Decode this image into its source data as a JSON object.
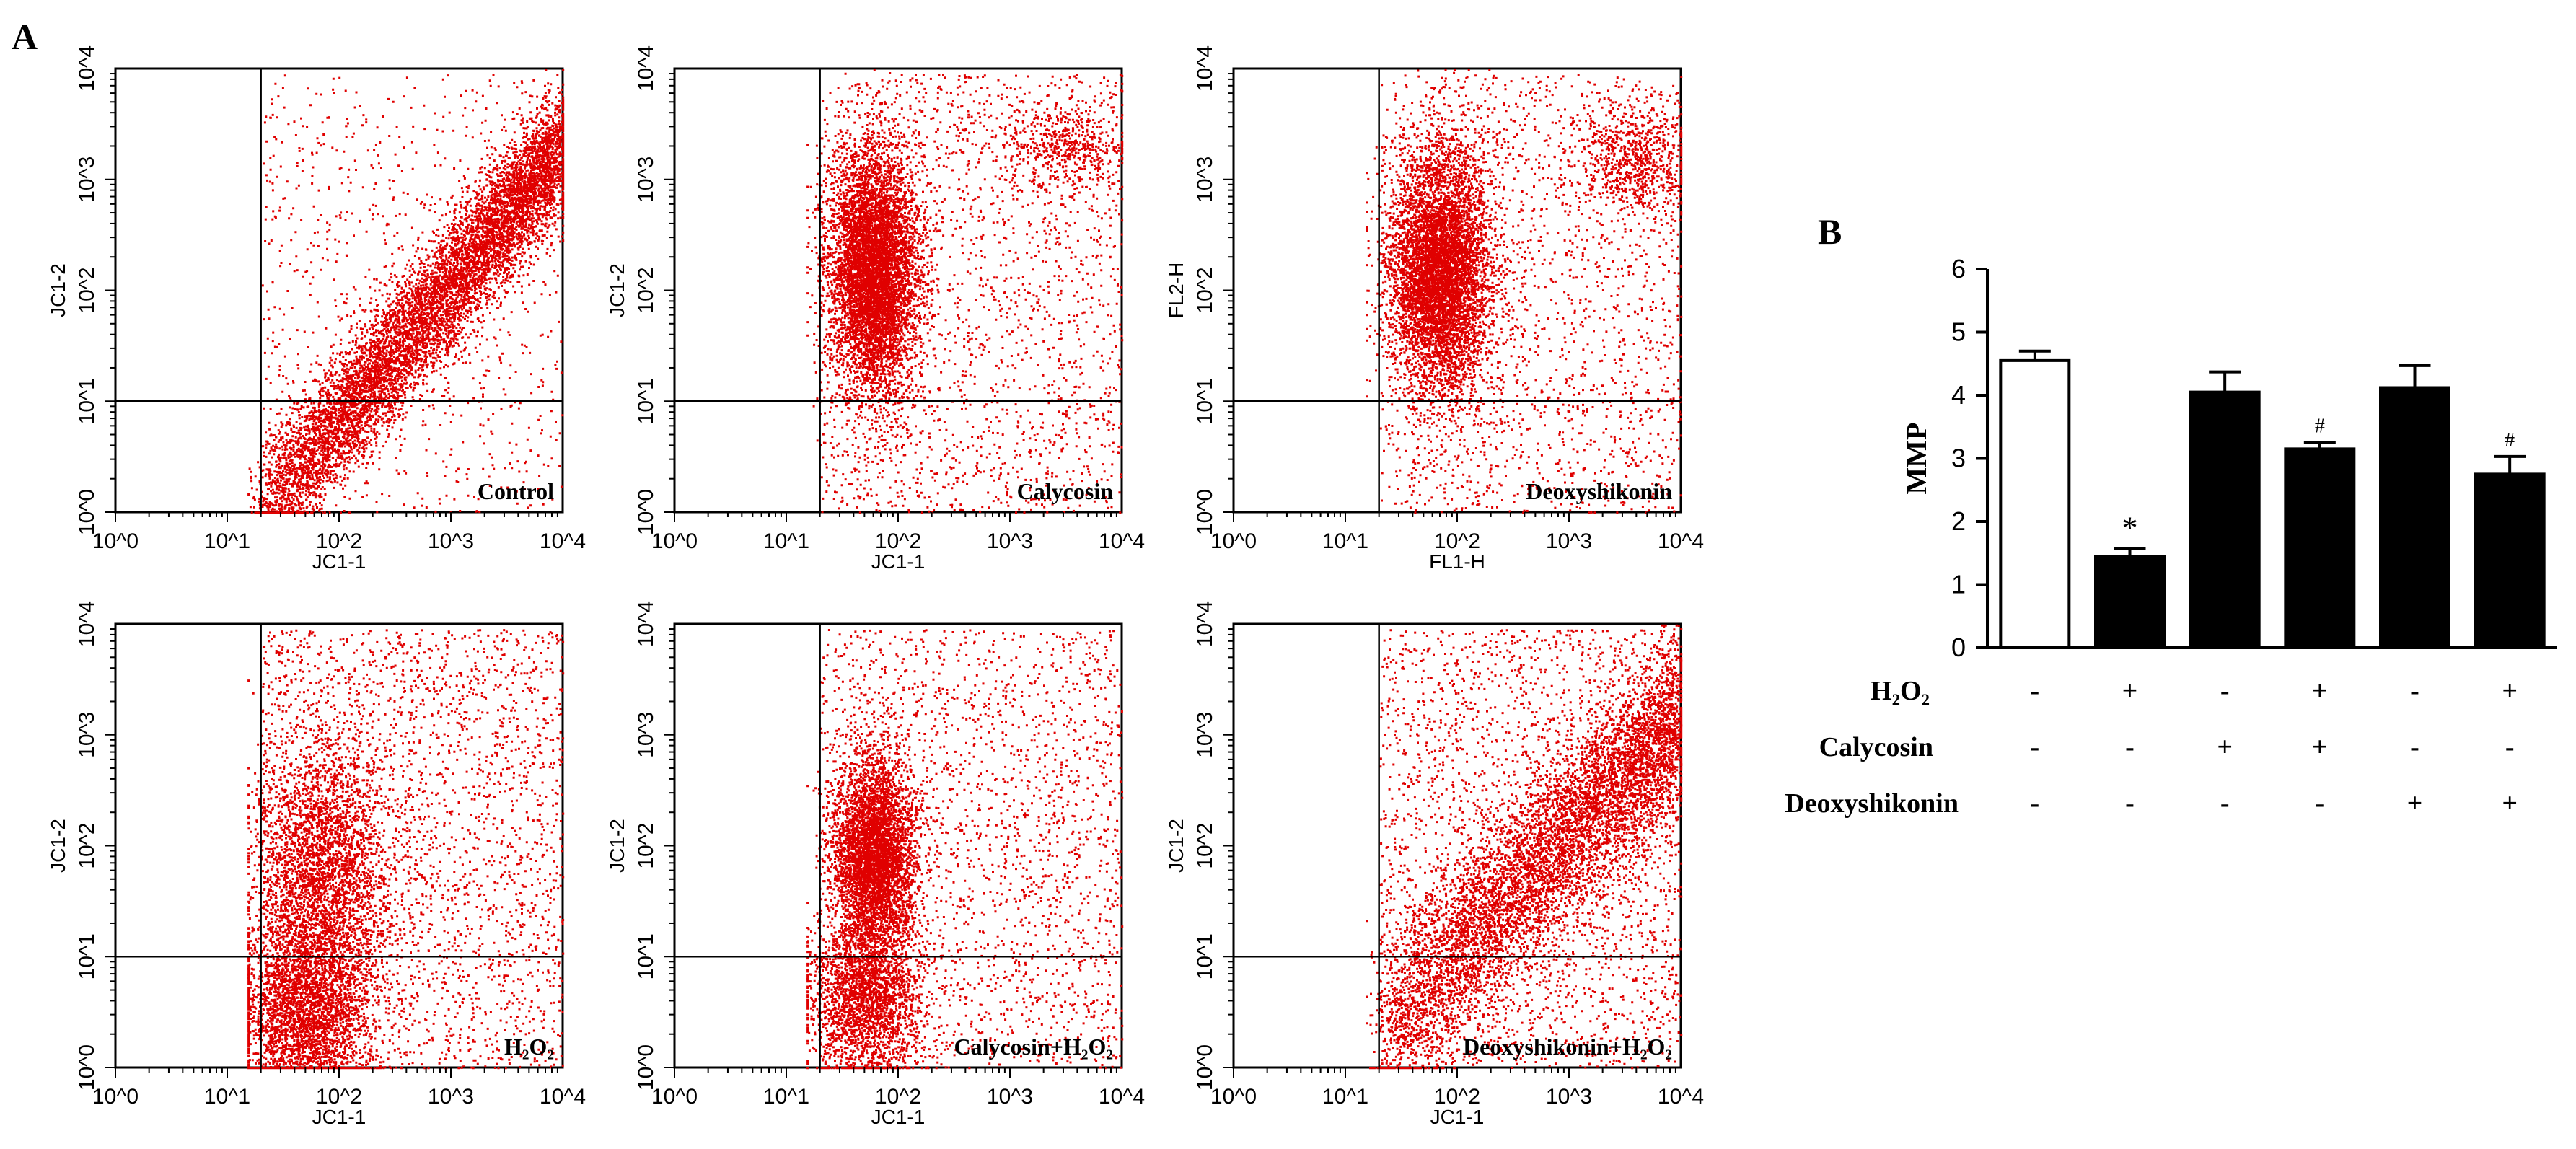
{
  "panel_labels": {
    "a": "A",
    "b": "B"
  },
  "chart_data": [
    {
      "type": "scatter",
      "panel": "A",
      "sample": "Control",
      "title": "Control",
      "xlabel": "JC1-1",
      "ylabel": "JC1-2",
      "xscale": "log",
      "yscale": "log",
      "xlim": [
        1,
        10000
      ],
      "ylim": [
        1,
        10000
      ],
      "x_ticks": [
        "10^0",
        "10^1",
        "10^2",
        "10^3",
        "10^4"
      ],
      "y_ticks": [
        "10^0",
        "10^1",
        "10^2",
        "10^3",
        "10^4"
      ],
      "quadrant_gate": {
        "x": 20,
        "y": 10
      },
      "color": "#e00000",
      "n_events": 9000,
      "populations": [
        {
          "kind": "diagonal",
          "x_from": 20,
          "x_to": 10000,
          "y_from": 1,
          "y_to": 2000,
          "width_decades": 0.28,
          "weight": 0.9
        },
        {
          "kind": "uniform",
          "x_range": [
            20,
            10000
          ],
          "y_range": [
            1,
            9000
          ],
          "weight": 0.1
        }
      ]
    },
    {
      "type": "scatter",
      "panel": "A",
      "sample": "Calycosin",
      "title": "Calycosin",
      "xlabel": "JC1-1",
      "ylabel": "JC1-2",
      "xscale": "log",
      "yscale": "log",
      "xlim": [
        1,
        10000
      ],
      "ylim": [
        1,
        10000
      ],
      "x_ticks": [
        "10^0",
        "10^1",
        "10^2",
        "10^3",
        "10^4"
      ],
      "y_ticks": [
        "10^0",
        "10^1",
        "10^2",
        "10^3",
        "10^4"
      ],
      "quadrant_gate": {
        "x": 20,
        "y": 10
      },
      "color": "#e00000",
      "n_events": 9000,
      "populations": [
        {
          "kind": "cluster",
          "x_center": 60,
          "y_center": 150,
          "x_sd_decades": 0.2,
          "y_sd_decades": 0.55,
          "weight": 0.72
        },
        {
          "kind": "cluster",
          "x_center": 3000,
          "y_center": 2000,
          "x_sd_decades": 0.3,
          "y_sd_decades": 0.2,
          "weight": 0.06
        },
        {
          "kind": "uniform",
          "x_range": [
            20,
            10000
          ],
          "y_range": [
            1,
            9000
          ],
          "weight": 0.22
        }
      ]
    },
    {
      "type": "scatter",
      "panel": "A",
      "sample": "Deoxyshikonin",
      "title": "Deoxyshikonin",
      "xlabel": "FL1-H",
      "ylabel": "FL2-H",
      "xscale": "log",
      "yscale": "log",
      "xlim": [
        1,
        10000
      ],
      "ylim": [
        1,
        10000
      ],
      "x_ticks": [
        "10^0",
        "10^1",
        "10^2",
        "10^3",
        "10^4"
      ],
      "y_ticks": [
        "10^0",
        "10^1",
        "10^2",
        "10^3",
        "10^4"
      ],
      "quadrant_gate": {
        "x": 20,
        "y": 10
      },
      "color": "#e00000",
      "n_events": 9000,
      "populations": [
        {
          "kind": "cluster",
          "x_center": 70,
          "y_center": 150,
          "x_sd_decades": 0.22,
          "y_sd_decades": 0.55,
          "weight": 0.7
        },
        {
          "kind": "cluster",
          "x_center": 4000,
          "y_center": 1500,
          "x_sd_decades": 0.25,
          "y_sd_decades": 0.25,
          "weight": 0.08
        },
        {
          "kind": "uniform",
          "x_range": [
            20,
            10000
          ],
          "y_range": [
            1,
            9000
          ],
          "weight": 0.22
        }
      ]
    },
    {
      "type": "scatter",
      "panel": "A",
      "sample": "H2O2",
      "title": "H₂O₂",
      "xlabel": "JC1-1",
      "ylabel": "JC1-2",
      "xscale": "log",
      "yscale": "log",
      "xlim": [
        1,
        10000
      ],
      "ylim": [
        1,
        10000
      ],
      "x_ticks": [
        "10^0",
        "10^1",
        "10^2",
        "10^3",
        "10^4"
      ],
      "y_ticks": [
        "10^0",
        "10^1",
        "10^2",
        "10^3",
        "10^4"
      ],
      "quadrant_gate": {
        "x": 20,
        "y": 10
      },
      "color": "#e00000",
      "n_events": 9000,
      "populations": [
        {
          "kind": "cluster",
          "x_center": 50,
          "y_center": 3,
          "x_sd_decades": 0.3,
          "y_sd_decades": 0.45,
          "weight": 0.35
        },
        {
          "kind": "cluster",
          "x_center": 70,
          "y_center": 60,
          "x_sd_decades": 0.3,
          "y_sd_decades": 0.6,
          "weight": 0.35
        },
        {
          "kind": "uniform",
          "x_range": [
            20,
            10000
          ],
          "y_range": [
            1,
            9000
          ],
          "weight": 0.3
        }
      ]
    },
    {
      "type": "scatter",
      "panel": "A",
      "sample": "Calycosin+H2O2",
      "title": "Calycosin+H₂O₂",
      "xlabel": "JC1-1",
      "ylabel": "JC1-2",
      "xscale": "log",
      "yscale": "log",
      "xlim": [
        1,
        10000
      ],
      "ylim": [
        1,
        10000
      ],
      "x_ticks": [
        "10^0",
        "10^1",
        "10^2",
        "10^3",
        "10^4"
      ],
      "y_ticks": [
        "10^0",
        "10^1",
        "10^2",
        "10^3",
        "10^4"
      ],
      "quadrant_gate": {
        "x": 20,
        "y": 10
      },
      "color": "#e00000",
      "n_events": 9000,
      "populations": [
        {
          "kind": "cluster",
          "x_center": 60,
          "y_center": 80,
          "x_sd_decades": 0.18,
          "y_sd_decades": 0.45,
          "weight": 0.5
        },
        {
          "kind": "cluster",
          "x_center": 50,
          "y_center": 4,
          "x_sd_decades": 0.25,
          "y_sd_decades": 0.35,
          "weight": 0.25
        },
        {
          "kind": "uniform",
          "x_range": [
            20,
            10000
          ],
          "y_range": [
            1,
            9000
          ],
          "weight": 0.25
        }
      ]
    },
    {
      "type": "scatter",
      "panel": "A",
      "sample": "Deoxyshikonin+H2O2",
      "title": "Deoxyshikonin+H₂O₂",
      "xlabel": "JC1-1",
      "ylabel": "JC1-2",
      "xscale": "log",
      "yscale": "log",
      "xlim": [
        1,
        10000
      ],
      "ylim": [
        1,
        10000
      ],
      "x_ticks": [
        "10^0",
        "10^1",
        "10^2",
        "10^3",
        "10^4"
      ],
      "y_ticks": [
        "10^0",
        "10^1",
        "10^2",
        "10^3",
        "10^4"
      ],
      "quadrant_gate": {
        "x": 20,
        "y": 10
      },
      "color": "#e00000",
      "n_events": 9000,
      "populations": [
        {
          "kind": "diagonal",
          "x_from": 20,
          "x_to": 10000,
          "y_from": 2,
          "y_to": 1500,
          "width_decades": 0.4,
          "weight": 0.72
        },
        {
          "kind": "uniform",
          "x_range": [
            20,
            10000
          ],
          "y_range": [
            1,
            9000
          ],
          "weight": 0.28
        }
      ]
    },
    {
      "type": "bar",
      "panel": "B",
      "title": "",
      "xlabel": "",
      "ylabel": "MMP",
      "ylim": [
        0,
        6
      ],
      "y_ticks": [
        "0",
        "1",
        "2",
        "3",
        "4",
        "5",
        "6"
      ],
      "groups": [
        {
          "value": 4.55,
          "error": 0.15,
          "fill": "#ffffff",
          "mark": ""
        },
        {
          "value": 1.45,
          "error": 0.12,
          "fill": "#000000",
          "mark": "*"
        },
        {
          "value": 4.05,
          "error": 0.32,
          "fill": "#000000",
          "mark": ""
        },
        {
          "value": 3.15,
          "error": 0.1,
          "fill": "#000000",
          "mark": "#"
        },
        {
          "value": 4.12,
          "error": 0.35,
          "fill": "#000000",
          "mark": ""
        },
        {
          "value": 2.75,
          "error": 0.28,
          "fill": "#000000",
          "mark": "#"
        }
      ],
      "treatments": [
        {
          "name": "H₂O₂",
          "states": [
            "-",
            "+",
            "-",
            "+",
            "-",
            "+"
          ]
        },
        {
          "name": "Calycosin",
          "states": [
            "-",
            "-",
            "+",
            "+",
            "-",
            "-"
          ]
        },
        {
          "name": "Deoxyshikonin",
          "states": [
            "-",
            "-",
            "-",
            "-",
            "+",
            "+"
          ]
        }
      ]
    }
  ]
}
